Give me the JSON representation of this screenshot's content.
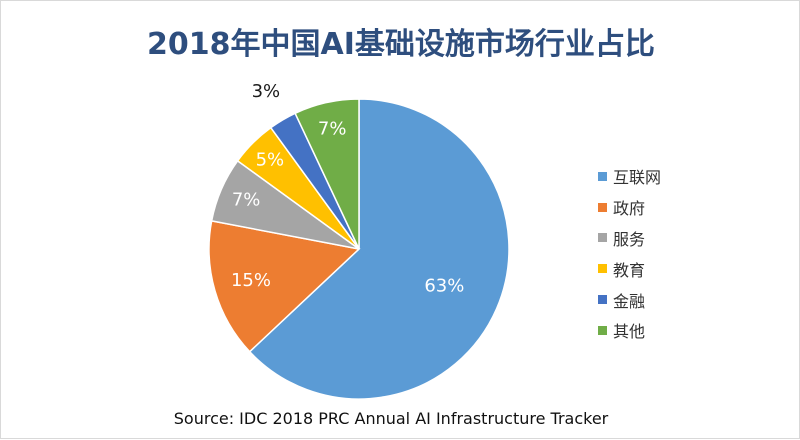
{
  "chart_data": {
    "type": "pie",
    "title": "2018年中国AI基础设施市场行业占比",
    "categories": [
      "互联网",
      "政府",
      "服务",
      "教育",
      "金融",
      "其他"
    ],
    "values": [
      63,
      15,
      7,
      5,
      3,
      7
    ],
    "labels": [
      "63%",
      "15%",
      "7%",
      "5%",
      "3%",
      "7%"
    ],
    "colors": [
      "#5b9bd5",
      "#ed7d31",
      "#a5a5a5",
      "#ffc000",
      "#4472c4",
      "#70ad47"
    ],
    "label_colors": [
      "#ffffff",
      "#ffffff",
      "#ffffff",
      "#ffffff",
      "#1a1a1a",
      "#ffffff"
    ],
    "start_angle_deg": 0,
    "direction": "clockwise",
    "legend_position": "right"
  },
  "source": "Source: IDC 2018 PRC Annual AI Infrastructure Tracker"
}
